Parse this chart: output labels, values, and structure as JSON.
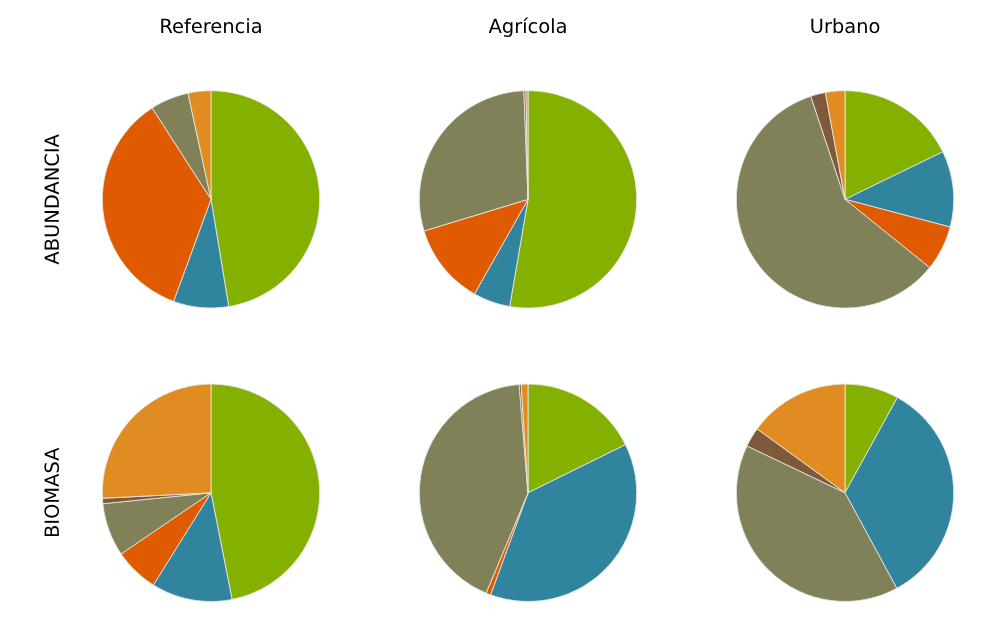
{
  "chart_data": [
    {
      "type": "pie",
      "title": "Referencia",
      "ylabel": "ABUNDANCIA",
      "categories": [
        null,
        null,
        null,
        null,
        null
      ],
      "values": [
        47.4,
        8.2,
        35.3,
        5.7,
        3.4
      ],
      "colors": [
        "#84b000",
        "#30849e",
        "#e05a00",
        "#808059",
        "#e08c20"
      ]
    },
    {
      "type": "pie",
      "title": "Agrícola",
      "categories": [
        null,
        null,
        null,
        null,
        null,
        null
      ],
      "values": [
        52.7,
        5.5,
        12.1,
        29.1,
        0.3,
        0.3
      ],
      "colors": [
        "#84b000",
        "#30849e",
        "#e05a00",
        "#808059",
        "#7f5a3a",
        "#e08c20"
      ]
    },
    {
      "type": "pie",
      "title": "Urbano",
      "categories": [
        null,
        null,
        null,
        null,
        null,
        null
      ],
      "values": [
        17.8,
        11.3,
        6.7,
        59.1,
        2.2,
        2.9
      ],
      "colors": [
        "#84b000",
        "#30849e",
        "#e05a00",
        "#808059",
        "#7f5a3a",
        "#e08c20"
      ]
    },
    {
      "type": "pie",
      "ylabel": "BIOMASA",
      "categories": [
        null,
        null,
        null,
        null,
        null,
        null
      ],
      "values": [
        46.9,
        12.0,
        6.6,
        7.9,
        0.8,
        25.8
      ],
      "colors": [
        "#84b000",
        "#30849e",
        "#e05a00",
        "#808059",
        "#7f5a3a",
        "#e08c20"
      ]
    },
    {
      "type": "pie",
      "categories": [
        null,
        null,
        null,
        null,
        null,
        null
      ],
      "values": [
        17.7,
        37.9,
        0.7,
        42.4,
        0.3,
        1.0
      ],
      "colors": [
        "#84b000",
        "#30849e",
        "#e05a00",
        "#808059",
        "#7f5a3a",
        "#e08c20"
      ]
    },
    {
      "type": "pie",
      "categories": [
        null,
        null,
        null,
        null,
        null
      ],
      "values": [
        8.0,
        34.1,
        40.0,
        2.9,
        15.0
      ],
      "colors": [
        "#84b000",
        "#30849e",
        "#808059",
        "#7f5a3a",
        "#e08c20"
      ]
    }
  ]
}
